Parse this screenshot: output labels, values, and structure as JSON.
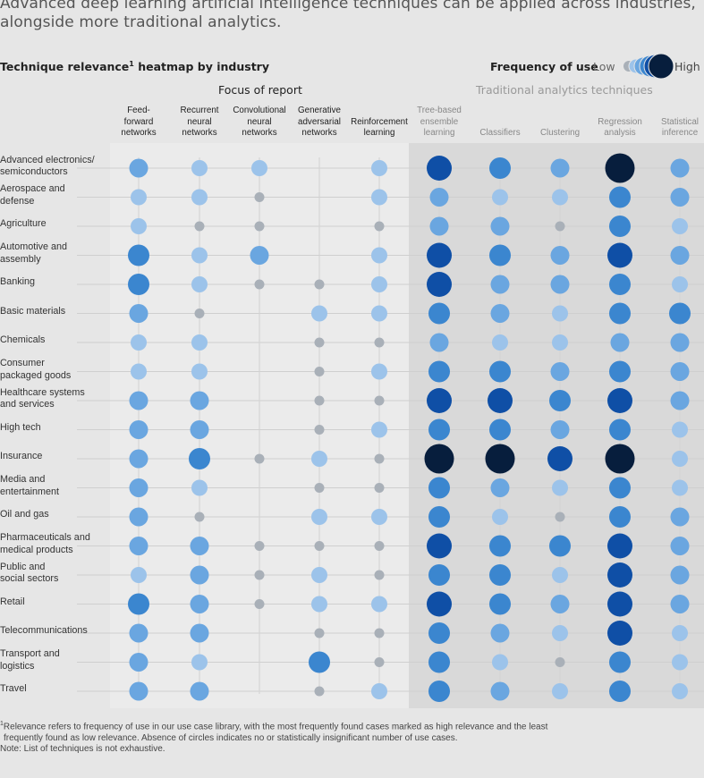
{
  "headline": [
    "Advanced deep learning artificial intelligence techniques can be applied across industries,",
    "alongside more traditional analytics."
  ],
  "subtitle": "Technique relevance",
  "subtitle_sup": "1",
  "subtitle_rest": " heatmap by industry",
  "legend": {
    "title": "Frequency of use",
    "low": "Low",
    "high": "High"
  },
  "groups": {
    "focus": "Focus of report",
    "traditional": "Traditional analytics techniques"
  },
  "colors": {
    "background": "#e6e6e6",
    "focus_panel": "#ebebeb",
    "trad_panel": "#d9d9d9",
    "levels": [
      "#a9b0b8",
      "#9cc3ea",
      "#6aa6e0",
      "#3b86cf",
      "#0f4fa6",
      "#071e3d"
    ]
  },
  "chart_data": {
    "type": "heatmap",
    "title": "Technique relevance heatmap by industry",
    "value_scale": "Frequency of use: 0 = none, 1 = very low (grey) ... 6 = highest (navy)",
    "columns": [
      {
        "label": [
          "Feed-",
          "forward",
          "networks"
        ],
        "group": "focus"
      },
      {
        "label": [
          "Recurrent",
          "neural",
          "networks"
        ],
        "group": "focus"
      },
      {
        "label": [
          "Convolutional",
          "neural",
          "networks"
        ],
        "group": "focus"
      },
      {
        "label": [
          "Generative",
          "adversarial",
          "networks"
        ],
        "group": "focus"
      },
      {
        "label": [
          "Reinforcement",
          "learning"
        ],
        "group": "focus"
      },
      {
        "label": [
          "Tree-based",
          "ensemble",
          "learning"
        ],
        "group": "traditional"
      },
      {
        "label": [
          "Classifiers"
        ],
        "group": "traditional"
      },
      {
        "label": [
          "Clustering"
        ],
        "group": "traditional"
      },
      {
        "label": [
          "Regression",
          "analysis"
        ],
        "group": "traditional"
      },
      {
        "label": [
          "Statistical",
          "inference"
        ],
        "group": "traditional"
      }
    ],
    "rows": [
      {
        "label": [
          "Advanced electronics/",
          "semiconductors"
        ],
        "values": [
          3,
          2,
          2,
          0,
          2,
          5,
          4,
          3,
          6,
          3
        ]
      },
      {
        "label": [
          "Aerospace and",
          "defense"
        ],
        "values": [
          2,
          2,
          1,
          0,
          2,
          3,
          2,
          2,
          4,
          3
        ]
      },
      {
        "label": [
          "Agriculture"
        ],
        "values": [
          2,
          1,
          1,
          0,
          1,
          3,
          3,
          1,
          4,
          2
        ]
      },
      {
        "label": [
          "Automotive and",
          "assembly"
        ],
        "values": [
          4,
          2,
          3,
          0,
          2,
          5,
          4,
          3,
          5,
          3
        ]
      },
      {
        "label": [
          "Banking"
        ],
        "values": [
          4,
          2,
          1,
          1,
          2,
          5,
          3,
          3,
          4,
          2
        ]
      },
      {
        "label": [
          "Basic materials"
        ],
        "values": [
          3,
          1,
          0,
          2,
          2,
          4,
          3,
          2,
          4,
          4
        ]
      },
      {
        "label": [
          "Chemicals"
        ],
        "values": [
          2,
          2,
          0,
          1,
          1,
          3,
          2,
          2,
          3,
          3
        ]
      },
      {
        "label": [
          "Consumer",
          "packaged goods"
        ],
        "values": [
          2,
          2,
          0,
          1,
          2,
          4,
          4,
          3,
          4,
          3
        ]
      },
      {
        "label": [
          "Healthcare systems",
          "and services"
        ],
        "values": [
          3,
          3,
          0,
          1,
          1,
          5,
          5,
          4,
          5,
          3
        ]
      },
      {
        "label": [
          "High tech"
        ],
        "values": [
          3,
          3,
          0,
          1,
          2,
          4,
          4,
          3,
          4,
          2
        ]
      },
      {
        "label": [
          "Insurance"
        ],
        "values": [
          3,
          4,
          1,
          2,
          1,
          6,
          6,
          5,
          6,
          2
        ]
      },
      {
        "label": [
          "Media and",
          "entertainment"
        ],
        "values": [
          3,
          2,
          0,
          1,
          1,
          4,
          3,
          2,
          4,
          2
        ]
      },
      {
        "label": [
          "Oil and gas"
        ],
        "values": [
          3,
          1,
          0,
          2,
          2,
          4,
          2,
          1,
          4,
          3
        ]
      },
      {
        "label": [
          "Pharmaceuticals and",
          "medical products"
        ],
        "values": [
          3,
          3,
          1,
          1,
          1,
          5,
          4,
          4,
          5,
          3
        ]
      },
      {
        "label": [
          "Public and",
          "social sectors"
        ],
        "values": [
          2,
          3,
          1,
          2,
          1,
          4,
          4,
          2,
          5,
          3
        ]
      },
      {
        "label": [
          "Retail"
        ],
        "values": [
          4,
          3,
          1,
          2,
          2,
          5,
          4,
          3,
          5,
          3
        ]
      },
      {
        "label": [
          "Telecommunications"
        ],
        "values": [
          3,
          3,
          0,
          1,
          1,
          4,
          3,
          2,
          5,
          2
        ]
      },
      {
        "label": [
          "Transport and",
          "logistics"
        ],
        "values": [
          3,
          2,
          0,
          4,
          1,
          4,
          2,
          1,
          4,
          2
        ]
      },
      {
        "label": [
          "Travel"
        ],
        "values": [
          3,
          3,
          0,
          1,
          2,
          4,
          3,
          2,
          4,
          2
        ]
      }
    ]
  },
  "footnote": {
    "sup": "1",
    "lines": [
      "Relevance refers to frequency of use in our use case library, with the most frequently found cases marked as high relevance and the least",
      "frequently found as low relevance. Absence of circles indicates no or statistically insignificant number of use cases."
    ],
    "note": "Note: List of techniques is not exhaustive."
  }
}
